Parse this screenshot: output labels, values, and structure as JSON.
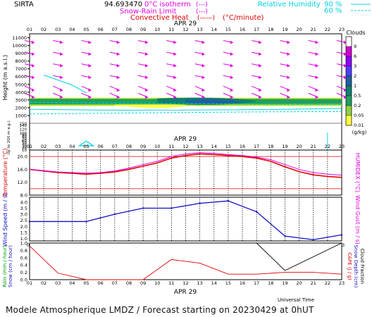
{
  "header": {
    "site": "SIRTA",
    "coords": "94.693470",
    "legend_isotherm": "0°C isotherm",
    "legend_snow_rain": "Snow-Rain Limit",
    "legend_convective": "Convective Heat",
    "legend_unit": "(°C/minute)",
    "legend_isotherm_sym": "(---)",
    "legend_snow_sym": "(---)",
    "legend_conv_sym": "(——)",
    "rh_label": "Relative Humidity",
    "rh_90": "90 %",
    "rh_60": "60 %"
  },
  "date_label": "APR 29",
  "hours": [
    "01",
    "02",
    "03",
    "04",
    "05",
    "06",
    "07",
    "08",
    "09",
    "10",
    "11",
    "12",
    "13",
    "14",
    "15",
    "16",
    "17",
    "18",
    "19",
    "20",
    "21",
    "22",
    "23"
  ],
  "footer": {
    "universal_time": "Universal Time",
    "title": "Modele Atmospherique LMDZ / Forecast starting on 20230429 at 0hUT"
  },
  "colors": {
    "magenta": "#e000e0",
    "cyan": "#00d0e0",
    "red": "#e00000",
    "blue": "#1010c0",
    "grid": "#000000"
  },
  "chart_data": [
    {
      "type": "heatmap",
      "name": "clouds",
      "ylabel": "Height (m a.s.l.)",
      "ylabel2": "Up to 200 m a.g.l.",
      "yticks_upper": [
        1000,
        2000,
        3000,
        4000,
        5000,
        6000,
        7000,
        8000,
        9000,
        10000,
        11000
      ],
      "yticks_lower": [
        10,
        20,
        30,
        40,
        50,
        60,
        70,
        80,
        90,
        100,
        120,
        140,
        150
      ],
      "colorbar_title": "Clouds",
      "colorbar_unit": "(g/kg)",
      "colorbar_labels": [
        "9",
        "6",
        "3",
        "2",
        "1",
        "0.5",
        "0.2",
        "0.05",
        "0.01"
      ],
      "colorbar_colors": [
        "#ffffff",
        "#d000d0",
        "#9000ff",
        "#5040ff",
        "#2060a0",
        "#108070",
        "#20a060",
        "#90d040",
        "#ffff40"
      ],
      "cloud_layer_m": [
        2200,
        3300
      ],
      "wind_arrows_colors": "magenta"
    },
    {
      "type": "line",
      "name": "temperature",
      "ylabel": "Temperature (°C)",
      "ylabel2": "HUMIDEX (°C)",
      "yticks": [
        "8.0",
        "12.0",
        "16.0",
        "20.0"
      ],
      "ylim": [
        8,
        22
      ],
      "x": [
        1,
        2,
        3,
        4,
        5,
        6,
        7,
        8,
        9,
        10,
        11,
        12,
        13,
        14,
        15,
        16,
        17,
        18,
        19,
        20,
        21,
        22,
        23
      ],
      "series": [
        {
          "values": [
            16.0,
            15.5,
            15.0,
            14.8,
            14.5,
            14.8,
            15.2,
            16.0,
            17.0,
            18.0,
            19.5,
            20.3,
            20.8,
            20.6,
            20.3,
            20.0,
            19.5,
            18.5,
            16.8,
            15.3,
            14.3,
            13.8,
            13.5
          ]
        },
        {
          "values": [
            16.0,
            15.6,
            15.2,
            15.0,
            14.8,
            15.0,
            15.5,
            16.4,
            17.5,
            18.5,
            20.0,
            20.8,
            21.2,
            21.0,
            20.6,
            20.3,
            19.8,
            19.0,
            17.5,
            16.0,
            15.0,
            14.5,
            14.2
          ]
        }
      ],
      "ref_lines": [
        20.0,
        10.0
      ]
    },
    {
      "type": "line",
      "name": "wind",
      "ylabel": "Wind Speed (m / s)",
      "ylabel2": "Wind Gust (m / s)",
      "yticks": [
        "1.0",
        "1.5",
        "2.0",
        "2.5",
        "3.0",
        "3.5",
        "4.0"
      ],
      "ylim": [
        0.8,
        4.4
      ],
      "x": [
        1,
        5,
        7,
        9,
        11,
        13,
        15,
        17,
        19,
        21,
        23
      ],
      "values": [
        2.4,
        2.4,
        3.0,
        3.5,
        3.5,
        3.9,
        4.1,
        3.2,
        1.2,
        0.9,
        1.3
      ]
    },
    {
      "type": "line",
      "name": "precip",
      "ylabel": "Rain (mm / hour)",
      "ylabel_b": "Snow (cm / hour)",
      "ylabel2": "CAPE (J / g)",
      "ylabel2_b": "Snow Depth (cm)",
      "ylabel2_c": "Cloud Fraction",
      "yticks": [
        "0.0",
        "0.2",
        "0.4",
        "0.6",
        "0.8",
        "1.0"
      ],
      "ylim": [
        0,
        1.0
      ],
      "x_rain": [
        1,
        3,
        5,
        7,
        9,
        11,
        13,
        15,
        17,
        19,
        21,
        23
      ],
      "rain": [
        0.92,
        0.18,
        0.0,
        0.0,
        0.0,
        0.55,
        0.45,
        0.15,
        0.15,
        0.2,
        0.2,
        0.15
      ],
      "x_cloud": [
        17,
        19,
        23
      ],
      "cloud": [
        1.0,
        0.25,
        1.0
      ]
    }
  ]
}
